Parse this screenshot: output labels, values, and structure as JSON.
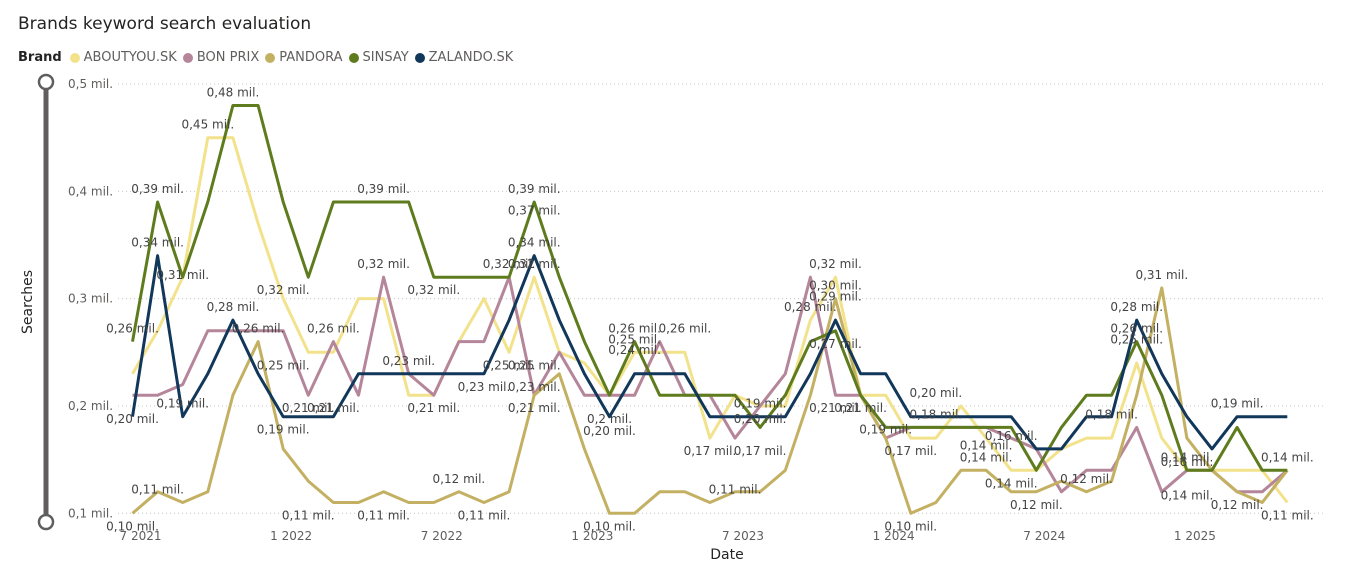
{
  "chart_data": {
    "type": "line",
    "title": "Brands keyword search evaluation",
    "legend_title": "Brand",
    "legend_position": "top-left",
    "xlabel": "Date",
    "ylabel": "Searches",
    "grid": true,
    "ylim": [
      0.09,
      0.5
    ],
    "y_ticks": [
      {
        "value": 0.1,
        "label": "0,1 mil."
      },
      {
        "value": 0.2,
        "label": "0,2 mil."
      },
      {
        "value": 0.3,
        "label": "0,3 mil."
      },
      {
        "value": 0.4,
        "label": "0,4 mil."
      },
      {
        "value": 0.5,
        "label": "0,5 mil."
      }
    ],
    "x_ticks": [
      {
        "value": 0,
        "label": "7 2021"
      },
      {
        "value": 6,
        "label": "1 2022"
      },
      {
        "value": 12,
        "label": "7 2022"
      },
      {
        "value": 18,
        "label": "1 2023"
      },
      {
        "value": 24,
        "label": "7 2023"
      },
      {
        "value": 30,
        "label": "1 2024"
      },
      {
        "value": 36,
        "label": "7 2024"
      },
      {
        "value": 42,
        "label": "1 2025"
      }
    ],
    "x_range": [
      -0.3,
      47.5
    ],
    "series": [
      {
        "name": "ABOUTYOU.SK",
        "color": "#F3E28C",
        "values": [
          0.23,
          0.27,
          0.32,
          0.45,
          0.45,
          0.37,
          0.3,
          0.25,
          0.25,
          0.3,
          0.3,
          0.21,
          0.21,
          0.26,
          0.3,
          0.25,
          0.32,
          0.25,
          0.24,
          0.21,
          0.25,
          0.25,
          0.25,
          0.17,
          0.21,
          0.2,
          0.2,
          0.28,
          0.32,
          0.21,
          0.21,
          0.17,
          0.17,
          0.2,
          0.17,
          0.14,
          0.14,
          0.16,
          0.17,
          0.17,
          0.24,
          0.17,
          0.14,
          0.14,
          0.14,
          0.14,
          0.11
        ]
      },
      {
        "name": "BON PRIX",
        "color": "#B5869A",
        "values": [
          0.21,
          0.21,
          0.22,
          0.27,
          0.27,
          0.27,
          0.27,
          0.21,
          0.26,
          0.21,
          0.32,
          0.23,
          0.21,
          0.26,
          0.26,
          0.32,
          0.21,
          0.25,
          0.21,
          0.21,
          0.21,
          0.26,
          0.21,
          0.21,
          0.17,
          0.2,
          0.23,
          0.32,
          0.21,
          0.21,
          0.17,
          0.18,
          0.18,
          0.18,
          0.18,
          0.17,
          0.16,
          0.12,
          0.14,
          0.14,
          0.18,
          0.12,
          0.14,
          0.14,
          0.12,
          0.12,
          0.14
        ]
      },
      {
        "name": "PANDORA",
        "color": "#C3B062",
        "values": [
          0.1,
          0.12,
          0.11,
          0.12,
          0.21,
          0.26,
          0.16,
          0.13,
          0.11,
          0.11,
          0.12,
          0.11,
          0.11,
          0.12,
          0.11,
          0.12,
          0.21,
          0.23,
          0.16,
          0.1,
          0.1,
          0.12,
          0.12,
          0.11,
          0.12,
          0.12,
          0.14,
          0.21,
          0.3,
          0.21,
          0.17,
          0.1,
          0.11,
          0.14,
          0.14,
          0.12,
          0.12,
          0.13,
          0.12,
          0.13,
          0.21,
          0.31,
          0.17,
          0.14,
          0.12,
          0.11,
          0.14
        ]
      },
      {
        "name": "SINSAY",
        "color": "#5E7C1E",
        "values": [
          0.26,
          0.39,
          0.32,
          0.39,
          0.48,
          0.48,
          0.39,
          0.32,
          0.39,
          0.39,
          0.39,
          0.39,
          0.32,
          0.32,
          0.32,
          0.32,
          0.39,
          0.32,
          0.26,
          0.21,
          0.26,
          0.21,
          0.21,
          0.21,
          0.21,
          0.18,
          0.21,
          0.26,
          0.27,
          0.21,
          0.18,
          0.18,
          0.18,
          0.18,
          0.18,
          0.18,
          0.14,
          0.18,
          0.21,
          0.21,
          0.26,
          0.21,
          0.14,
          0.14,
          0.18,
          0.14,
          0.14
        ]
      },
      {
        "name": "ZALANDO.SK",
        "color": "#11375A",
        "values": [
          0.19,
          0.34,
          0.19,
          0.23,
          0.28,
          0.23,
          0.19,
          0.19,
          0.19,
          0.23,
          0.23,
          0.23,
          0.23,
          0.23,
          0.23,
          0.28,
          0.34,
          0.28,
          0.23,
          0.19,
          0.23,
          0.23,
          0.23,
          0.19,
          0.19,
          0.19,
          0.19,
          0.23,
          0.28,
          0.23,
          0.23,
          0.19,
          0.19,
          0.19,
          0.19,
          0.19,
          0.16,
          0.16,
          0.19,
          0.19,
          0.28,
          0.23,
          0.19,
          0.16,
          0.19,
          0.19,
          0.19
        ]
      }
    ],
    "data_labels": [
      {
        "x": 0,
        "y": 0.2,
        "text": "0,20 mil.",
        "pos": "below"
      },
      {
        "x": 0,
        "y": 0.26,
        "text": "0,26 mil.",
        "pos": "above"
      },
      {
        "x": 0,
        "y": 0.1,
        "text": "0,10 mil.",
        "pos": "below"
      },
      {
        "x": 1,
        "y": 0.39,
        "text": "0,39 mil.",
        "pos": "above"
      },
      {
        "x": 1,
        "y": 0.34,
        "text": "0,34 mil.",
        "pos": "above"
      },
      {
        "x": 1,
        "y": 0.11,
        "text": "0,11 mil.",
        "pos": "above"
      },
      {
        "x": 2,
        "y": 0.31,
        "text": "0,31 mil.",
        "pos": "above"
      },
      {
        "x": 2,
        "y": 0.19,
        "text": "0,19 mil.",
        "pos": "above"
      },
      {
        "x": 3,
        "y": 0.45,
        "text": "0,45 mil.",
        "pos": "above"
      },
      {
        "x": 4,
        "y": 0.28,
        "text": "0,28 mil.",
        "pos": "above"
      },
      {
        "x": 4,
        "y": 0.48,
        "text": "0,48 mil.",
        "pos": "above"
      },
      {
        "x": 5,
        "y": 0.26,
        "text": "0,26 mil.",
        "pos": "above"
      },
      {
        "x": 6,
        "y": 0.32,
        "text": "0,32 mil.",
        "pos": "below"
      },
      {
        "x": 6,
        "y": 0.25,
        "text": "0,25 mil.",
        "pos": "below"
      },
      {
        "x": 6,
        "y": 0.19,
        "text": "0,19 mil.",
        "pos": "below"
      },
      {
        "x": 7,
        "y": 0.21,
        "text": "0,21 mil.",
        "pos": "below"
      },
      {
        "x": 7,
        "y": 0.11,
        "text": "0,11 mil.",
        "pos": "below"
      },
      {
        "x": 8,
        "y": 0.26,
        "text": "0,26 mil.",
        "pos": "above"
      },
      {
        "x": 8,
        "y": 0.21,
        "text": "0,21 mil.",
        "pos": "below"
      },
      {
        "x": 10,
        "y": 0.39,
        "text": "0,39 mil.",
        "pos": "above"
      },
      {
        "x": 10,
        "y": 0.32,
        "text": "0,32 mil.",
        "pos": "above"
      },
      {
        "x": 10,
        "y": 0.11,
        "text": "0,11 mil.",
        "pos": "below"
      },
      {
        "x": 11,
        "y": 0.23,
        "text": "0,23 mil.",
        "pos": "above"
      },
      {
        "x": 12,
        "y": 0.32,
        "text": "0,32 mil.",
        "pos": "below"
      },
      {
        "x": 12,
        "y": 0.21,
        "text": "0,21 mil.",
        "pos": "below"
      },
      {
        "x": 13,
        "y": 0.12,
        "text": "0,12 mil.",
        "pos": "above"
      },
      {
        "x": 14,
        "y": 0.23,
        "text": "0,23 mil.",
        "pos": "below"
      },
      {
        "x": 14,
        "y": 0.11,
        "text": "0,11 mil.",
        "pos": "below"
      },
      {
        "x": 15,
        "y": 0.32,
        "text": "0,32 mil.",
        "pos": "above"
      },
      {
        "x": 15,
        "y": 0.25,
        "text": "0,25 mil.",
        "pos": "below"
      },
      {
        "x": 16,
        "y": 0.39,
        "text": "0,39 mil.",
        "pos": "above"
      },
      {
        "x": 16,
        "y": 0.37,
        "text": "0,37 mil.",
        "pos": "above"
      },
      {
        "x": 16,
        "y": 0.34,
        "text": "0,34 mil.",
        "pos": "above"
      },
      {
        "x": 16,
        "y": 0.32,
        "text": "0,32 mil.",
        "pos": "above"
      },
      {
        "x": 16,
        "y": 0.23,
        "text": "0,23 mil.",
        "pos": "below"
      },
      {
        "x": 16,
        "y": 0.25,
        "text": "0,25 mil.",
        "pos": "below"
      },
      {
        "x": 16,
        "y": 0.21,
        "text": "0,21 mil.",
        "pos": "below"
      },
      {
        "x": 19,
        "y": 0.2,
        "text": "0,2 mil.",
        "pos": "below"
      },
      {
        "x": 19,
        "y": 0.2,
        "text": "0,20 mil.",
        "pos": "below2"
      },
      {
        "x": 19,
        "y": 0.1,
        "text": "0,10 mil.",
        "pos": "below"
      },
      {
        "x": 20,
        "y": 0.25,
        "text": "0,25 mil.",
        "pos": "above"
      },
      {
        "x": 20,
        "y": 0.26,
        "text": "0,26 mil.",
        "pos": "above"
      },
      {
        "x": 20,
        "y": 0.24,
        "text": "0,24 mil.",
        "pos": "above"
      },
      {
        "x": 22,
        "y": 0.26,
        "text": "0,26 mil.",
        "pos": "above"
      },
      {
        "x": 23,
        "y": 0.17,
        "text": "0,17 mil.",
        "pos": "below"
      },
      {
        "x": 24,
        "y": 0.11,
        "text": "0,11 mil.",
        "pos": "above"
      },
      {
        "x": 25,
        "y": 0.19,
        "text": "0,19 mil.",
        "pos": "above"
      },
      {
        "x": 25,
        "y": 0.2,
        "text": "0,20 mil.",
        "pos": "below"
      },
      {
        "x": 25,
        "y": 0.17,
        "text": "0,17 mil.",
        "pos": "below"
      },
      {
        "x": 27,
        "y": 0.28,
        "text": "0,28 mil.",
        "pos": "above"
      },
      {
        "x": 28,
        "y": 0.3,
        "text": "0,30 mil.",
        "pos": "above"
      },
      {
        "x": 28,
        "y": 0.32,
        "text": "0,32 mil.",
        "pos": "above"
      },
      {
        "x": 28,
        "y": 0.29,
        "text": "0,29 mil.",
        "pos": "above"
      },
      {
        "x": 28,
        "y": 0.27,
        "text": "0,27 mil.",
        "pos": "below"
      },
      {
        "x": 28,
        "y": 0.21,
        "text": "0,21 mil.",
        "pos": "below"
      },
      {
        "x": 29,
        "y": 0.21,
        "text": "0,21 mil.",
        "pos": "below"
      },
      {
        "x": 30,
        "y": 0.19,
        "text": "0,19 mil.",
        "pos": "below"
      },
      {
        "x": 31,
        "y": 0.17,
        "text": "0,17 mil.",
        "pos": "below"
      },
      {
        "x": 31,
        "y": 0.1,
        "text": "0,10 mil.",
        "pos": "below"
      },
      {
        "x": 32,
        "y": 0.2,
        "text": "0,20 mil.",
        "pos": "above"
      },
      {
        "x": 32,
        "y": 0.18,
        "text": "0,18 mil.",
        "pos": "above"
      },
      {
        "x": 34,
        "y": 0.14,
        "text": "0,14 mil.",
        "pos": "above"
      },
      {
        "x": 34,
        "y": 0.14,
        "text": "0,14 mil.",
        "pos": "above2"
      },
      {
        "x": 35,
        "y": 0.16,
        "text": "0,16 mil.",
        "pos": "above"
      },
      {
        "x": 35,
        "y": 0.14,
        "text": "0,14 mil.",
        "pos": "below"
      },
      {
        "x": 36,
        "y": 0.12,
        "text": "0,12 mil.",
        "pos": "below"
      },
      {
        "x": 38,
        "y": 0.12,
        "text": "0,12 mil.",
        "pos": "above"
      },
      {
        "x": 39,
        "y": 0.18,
        "text": "0,18 mil.",
        "pos": "above"
      },
      {
        "x": 40,
        "y": 0.28,
        "text": "0,28 mil.",
        "pos": "above"
      },
      {
        "x": 40,
        "y": 0.26,
        "text": "0,26 mil.",
        "pos": "above"
      },
      {
        "x": 40,
        "y": 0.25,
        "text": "0,25 mil.",
        "pos": "above"
      },
      {
        "x": 41,
        "y": 0.31,
        "text": "0,31 mil.",
        "pos": "above"
      },
      {
        "x": 42,
        "y": 0.14,
        "text": "0,14 mil.",
        "pos": "above"
      },
      {
        "x": 42,
        "y": 0.16,
        "text": "0,16 mil.",
        "pos": "below"
      },
      {
        "x": 42,
        "y": 0.14,
        "text": "0,14 mil.",
        "pos": "below2"
      },
      {
        "x": 44,
        "y": 0.19,
        "text": "0,19 mil.",
        "pos": "above"
      },
      {
        "x": 44,
        "y": 0.12,
        "text": "0,12 mil.",
        "pos": "below"
      },
      {
        "x": 46,
        "y": 0.14,
        "text": "0,14 mil.",
        "pos": "above"
      },
      {
        "x": 46,
        "y": 0.11,
        "text": "0,11 mil.",
        "pos": "below"
      }
    ]
  }
}
